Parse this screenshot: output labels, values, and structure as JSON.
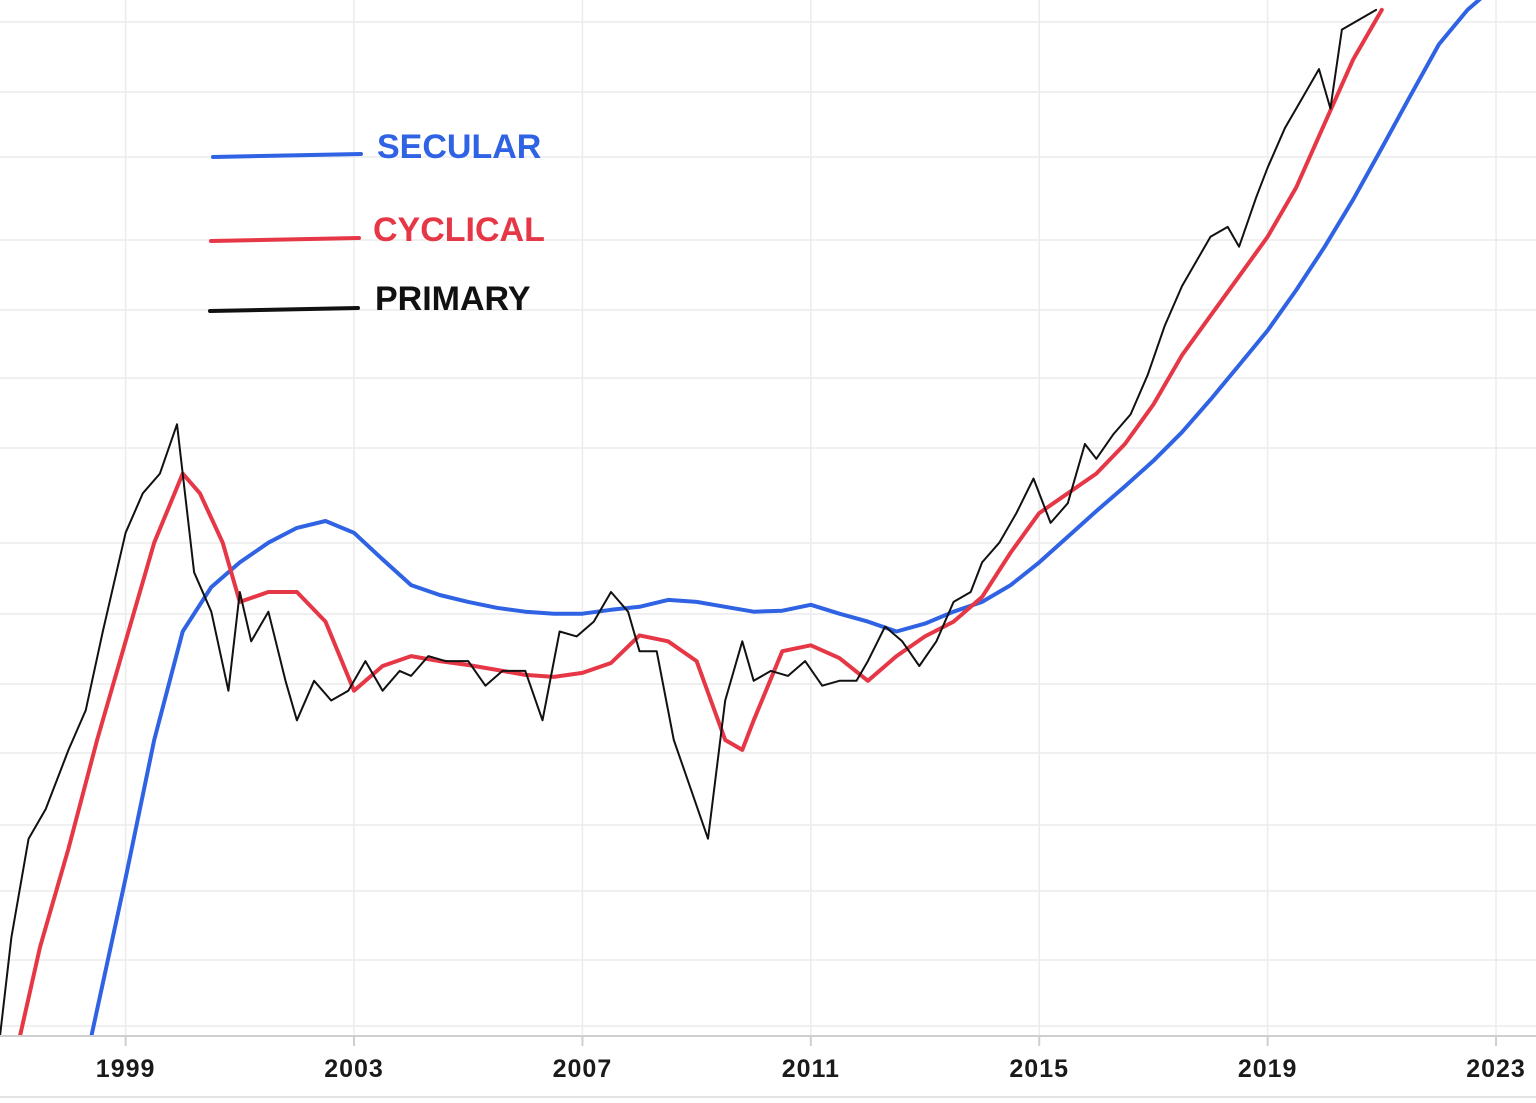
{
  "chart_data": {
    "type": "line",
    "title": "",
    "xlabel": "",
    "ylabel": "",
    "grid": true,
    "legend_placement": "top-left",
    "x_tick_labels": [
      "1999",
      "2003",
      "2007",
      "2011",
      "2015",
      "2019",
      "2023"
    ],
    "xlim": [
      1996.8,
      2023.7
    ],
    "ylim": [
      0,
      1.05
    ],
    "series": [
      {
        "name": "SECULAR",
        "color": "#2f63e3",
        "x": [
          1998.4,
          1999.0,
          1999.5,
          2000.0,
          2000.5,
          2001.0,
          2001.5,
          2002.0,
          2002.5,
          2003.0,
          2003.5,
          2004.0,
          2004.5,
          2005.0,
          2005.5,
          2006.0,
          2006.5,
          2007.0,
          2007.5,
          2008.0,
          2008.5,
          2009.0,
          2009.5,
          2010.0,
          2010.5,
          2011.0,
          2011.5,
          2012.0,
          2012.5,
          2013.0,
          2013.5,
          2014.0,
          2014.5,
          2015.0,
          2015.5,
          2016.0,
          2016.5,
          2017.0,
          2017.5,
          2018.0,
          2018.5,
          2019.0,
          2019.5,
          2020.0,
          2020.5,
          2021.0,
          2021.5,
          2022.0,
          2022.5,
          2022.9
        ],
        "values": [
          0.0,
          0.16,
          0.3,
          0.41,
          0.455,
          0.48,
          0.5,
          0.515,
          0.522,
          0.51,
          0.483,
          0.457,
          0.447,
          0.44,
          0.434,
          0.43,
          0.428,
          0.428,
          0.432,
          0.435,
          0.442,
          0.44,
          0.435,
          0.43,
          0.431,
          0.437,
          0.428,
          0.42,
          0.41,
          0.418,
          0.43,
          0.44,
          0.457,
          0.48,
          0.506,
          0.532,
          0.557,
          0.583,
          0.612,
          0.645,
          0.68,
          0.715,
          0.756,
          0.8,
          0.848,
          0.9,
          0.953,
          1.005,
          1.04,
          1.06
        ]
      },
      {
        "name": "CYCLICAL",
        "color": "#e63746",
        "x": [
          1997.15,
          1997.5,
          1998.0,
          1998.5,
          1999.0,
          1999.5,
          2000.0,
          2000.3,
          2000.7,
          2001.0,
          2001.5,
          2002.0,
          2002.5,
          2003.0,
          2003.5,
          2004.0,
          2004.5,
          2005.0,
          2005.5,
          2006.0,
          2006.5,
          2007.0,
          2007.5,
          2008.0,
          2008.5,
          2009.0,
          2009.5,
          2009.8,
          2010.0,
          2010.5,
          2011.0,
          2011.5,
          2012.0,
          2012.5,
          2013.0,
          2013.5,
          2014.0,
          2014.5,
          2015.0,
          2015.5,
          2016.0,
          2016.5,
          2017.0,
          2017.5,
          2018.0,
          2018.5,
          2019.0,
          2019.5,
          2020.0,
          2020.5,
          2021.0
        ],
        "values": [
          0.0,
          0.09,
          0.19,
          0.3,
          0.4,
          0.5,
          0.57,
          0.55,
          0.5,
          0.44,
          0.45,
          0.45,
          0.42,
          0.35,
          0.375,
          0.385,
          0.38,
          0.376,
          0.371,
          0.366,
          0.364,
          0.368,
          0.378,
          0.406,
          0.4,
          0.38,
          0.3,
          0.29,
          0.32,
          0.39,
          0.396,
          0.383,
          0.36,
          0.385,
          0.405,
          0.42,
          0.445,
          0.49,
          0.53,
          0.55,
          0.57,
          0.6,
          0.64,
          0.69,
          0.73,
          0.77,
          0.81,
          0.86,
          0.925,
          0.99,
          1.04
        ]
      },
      {
        "name": "PRIMARY",
        "color": "#111111",
        "x": [
          1996.8,
          1997.0,
          1997.3,
          1997.6,
          1998.0,
          1998.3,
          1998.6,
          1999.0,
          1999.3,
          1999.6,
          1999.9,
          2000.2,
          2000.5,
          2000.8,
          2001.0,
          2001.2,
          2001.5,
          2001.8,
          2002.0,
          2002.3,
          2002.6,
          2002.9,
          2003.2,
          2003.5,
          2003.8,
          2004.0,
          2004.3,
          2004.6,
          2005.0,
          2005.3,
          2005.6,
          2006.0,
          2006.3,
          2006.6,
          2006.9,
          2007.2,
          2007.5,
          2007.8,
          2008.0,
          2008.3,
          2008.6,
          2008.9,
          2009.2,
          2009.5,
          2009.8,
          2010.0,
          2010.3,
          2010.6,
          2010.9,
          2011.2,
          2011.5,
          2011.8,
          2012.0,
          2012.3,
          2012.6,
          2012.9,
          2013.2,
          2013.5,
          2013.8,
          2014.0,
          2014.3,
          2014.6,
          2014.9,
          2015.2,
          2015.5,
          2015.8,
          2016.0,
          2016.3,
          2016.6,
          2016.9,
          2017.2,
          2017.5,
          2017.8,
          2018.0,
          2018.3,
          2018.5,
          2018.8,
          2019.0,
          2019.3,
          2019.6,
          2019.9,
          2020.1,
          2020.3,
          2020.6,
          2020.9
        ],
        "values": [
          0.0,
          0.1,
          0.2,
          0.23,
          0.29,
          0.33,
          0.41,
          0.51,
          0.55,
          0.57,
          0.62,
          0.47,
          0.43,
          0.35,
          0.45,
          0.4,
          0.43,
          0.36,
          0.32,
          0.36,
          0.34,
          0.35,
          0.38,
          0.35,
          0.37,
          0.365,
          0.385,
          0.38,
          0.38,
          0.355,
          0.37,
          0.37,
          0.32,
          0.41,
          0.405,
          0.42,
          0.45,
          0.43,
          0.39,
          0.39,
          0.3,
          0.25,
          0.2,
          0.34,
          0.4,
          0.36,
          0.37,
          0.365,
          0.38,
          0.355,
          0.36,
          0.36,
          0.38,
          0.415,
          0.4,
          0.375,
          0.4,
          0.44,
          0.45,
          0.48,
          0.5,
          0.53,
          0.565,
          0.52,
          0.54,
          0.6,
          0.585,
          0.61,
          0.63,
          0.67,
          0.72,
          0.76,
          0.79,
          0.81,
          0.82,
          0.8,
          0.85,
          0.88,
          0.92,
          0.95,
          0.98,
          0.94,
          1.02,
          1.03,
          1.04
        ]
      }
    ]
  }
}
